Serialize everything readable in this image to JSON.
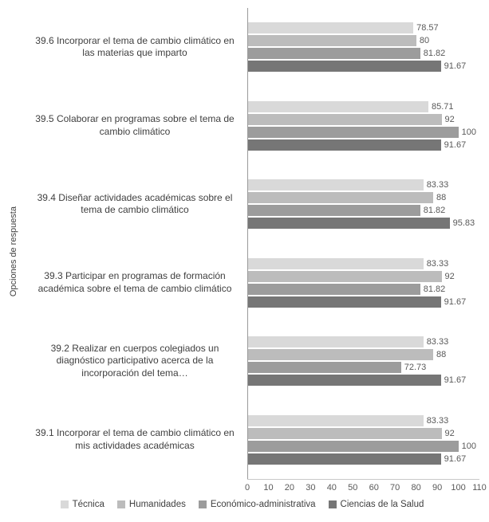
{
  "chart_data": {
    "type": "bar",
    "orientation": "horizontal",
    "title": "",
    "xlabel": "",
    "ylabel": "Opciones de respuesta",
    "xlim": [
      0,
      110
    ],
    "x_ticks": [
      0,
      10,
      20,
      30,
      40,
      50,
      60,
      70,
      80,
      90,
      100,
      110
    ],
    "grid": false,
    "legend_position": "bottom",
    "value_labels_shown": true,
    "categories": [
      "39.6 Incorporar el tema de cambio climático en las materias que imparto",
      "39.5 Colaborar en programas sobre el tema de cambio climático",
      "39.4 Diseñar actividades académicas sobre el tema de cambio climático",
      "39.3 Participar en programas de formación académica sobre el tema de cambio climático",
      "39.2 Realizar en cuerpos colegiados un diagnóstico participativo acerca de la incorporación del tema…",
      "39.1 Incorporar el tema de cambio climático en mis actividades académicas"
    ],
    "series": [
      {
        "id": "tecnica",
        "name": "Técnica",
        "color": "#d9d9d9",
        "values": [
          78.57,
          85.71,
          83.33,
          83.33,
          83.33,
          83.33
        ]
      },
      {
        "id": "humanidades",
        "name": "Humanidades",
        "color": "#bcbcbc",
        "values": [
          80,
          92,
          88,
          92,
          88,
          92
        ]
      },
      {
        "id": "economico-administrativa",
        "name": "Económico-administrativa",
        "color": "#9c9c9c",
        "values": [
          81.82,
          100,
          81.82,
          81.82,
          72.73,
          100
        ]
      },
      {
        "id": "ciencias-de-la-salud",
        "name": "Ciencias de la Salud",
        "color": "#767676",
        "values": [
          91.67,
          91.67,
          95.83,
          91.67,
          91.67,
          91.67
        ]
      }
    ]
  }
}
